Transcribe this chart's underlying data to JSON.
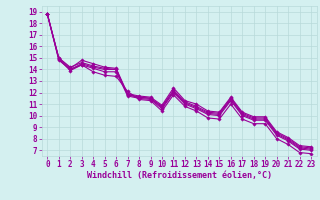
{
  "xlabel": "Windchill (Refroidissement éolien,°C)",
  "bg_color": "#d4f0f0",
  "grid_color": "#b8dada",
  "line_color": "#990099",
  "marker": "D",
  "markersize": 1.8,
  "linewidth": 0.8,
  "xlim": [
    -0.5,
    23.5
  ],
  "ylim": [
    6.5,
    19.5
  ],
  "yticks": [
    7,
    8,
    9,
    10,
    11,
    12,
    13,
    14,
    15,
    16,
    17,
    18,
    19
  ],
  "xticks": [
    0,
    1,
    2,
    3,
    4,
    5,
    6,
    7,
    8,
    9,
    10,
    11,
    12,
    13,
    14,
    15,
    16,
    17,
    18,
    19,
    20,
    21,
    22,
    23
  ],
  "tick_fontsize": 5.5,
  "xlabel_fontsize": 6.0,
  "lines": [
    {
      "x": [
        0,
        1,
        2,
        3,
        4,
        5,
        6,
        7,
        8,
        9,
        10,
        11,
        12,
        13,
        14,
        15,
        16,
        17,
        18,
        19,
        20,
        21,
        22,
        23
      ],
      "y": [
        18.8,
        15.0,
        14.2,
        14.6,
        14.3,
        14.1,
        14.0,
        11.8,
        11.6,
        11.5,
        10.8,
        12.2,
        11.2,
        10.8,
        10.3,
        10.2,
        11.5,
        10.2,
        9.8,
        9.8,
        8.5,
        8.0,
        7.3,
        7.2
      ]
    },
    {
      "x": [
        0,
        1,
        2,
        3,
        4,
        5,
        6,
        7,
        8,
        9,
        10,
        11,
        12,
        13,
        14,
        15,
        16,
        17,
        18,
        19,
        20,
        21,
        22,
        23
      ],
      "y": [
        18.8,
        15.0,
        14.1,
        14.8,
        14.5,
        14.2,
        14.1,
        11.9,
        11.7,
        11.6,
        10.9,
        12.4,
        11.3,
        11.0,
        10.4,
        10.3,
        11.6,
        10.3,
        9.9,
        9.9,
        8.6,
        8.1,
        7.4,
        7.3
      ]
    },
    {
      "x": [
        0,
        1,
        2,
        3,
        4,
        5,
        6,
        7,
        8,
        9,
        10,
        11,
        12,
        13,
        14,
        15,
        16,
        17,
        18,
        19,
        20,
        21,
        22,
        23
      ],
      "y": [
        18.8,
        14.9,
        13.9,
        14.4,
        14.1,
        13.8,
        13.8,
        11.7,
        11.5,
        11.4,
        10.6,
        12.0,
        11.0,
        10.6,
        10.1,
        10.0,
        11.3,
        10.0,
        9.6,
        9.6,
        8.3,
        7.8,
        7.1,
        7.0
      ]
    },
    {
      "x": [
        0,
        1,
        2,
        3,
        4,
        5,
        6,
        7,
        8,
        9,
        10,
        11,
        12,
        13,
        14,
        15,
        16,
        17,
        18,
        19,
        20,
        21,
        22,
        23
      ],
      "y": [
        18.8,
        14.8,
        14.0,
        14.5,
        14.2,
        14.0,
        14.0,
        11.8,
        11.6,
        11.5,
        10.7,
        12.1,
        11.1,
        10.7,
        10.2,
        10.1,
        11.4,
        10.1,
        9.7,
        9.7,
        8.4,
        7.9,
        7.2,
        7.1
      ]
    },
    {
      "x": [
        0,
        1,
        2,
        3,
        4,
        5,
        6,
        7,
        8,
        9,
        10,
        11,
        12,
        13,
        14,
        15,
        16,
        17,
        18,
        19,
        20,
        21,
        22,
        23
      ],
      "y": [
        18.8,
        14.9,
        14.0,
        14.4,
        13.8,
        13.5,
        13.4,
        12.1,
        11.4,
        11.3,
        10.4,
        11.8,
        10.8,
        10.4,
        9.8,
        9.7,
        11.0,
        9.7,
        9.3,
        9.3,
        8.0,
        7.5,
        6.8,
        6.7
      ]
    }
  ]
}
